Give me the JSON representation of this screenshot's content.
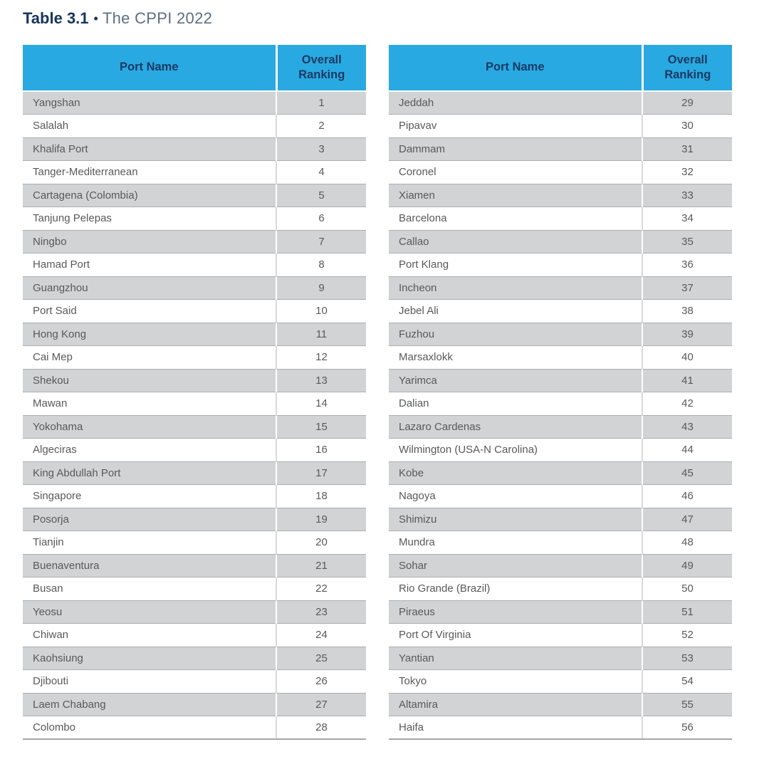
{
  "title": {
    "label": "Table 3.1",
    "bullet": "•",
    "text": "The CPPI 2022"
  },
  "columns": {
    "port": "Port Name",
    "ranking": "Overall Ranking"
  },
  "tables": [
    {
      "name": "ranks-1-28",
      "rows": [
        {
          "port": "Yangshan",
          "rank": "1"
        },
        {
          "port": "Salalah",
          "rank": "2"
        },
        {
          "port": "Khalifa Port",
          "rank": "3"
        },
        {
          "port": "Tanger-Mediterranean",
          "rank": "4"
        },
        {
          "port": "Cartagena (Colombia)",
          "rank": "5"
        },
        {
          "port": "Tanjung Pelepas",
          "rank": "6"
        },
        {
          "port": "Ningbo",
          "rank": "7"
        },
        {
          "port": "Hamad Port",
          "rank": "8"
        },
        {
          "port": "Guangzhou",
          "rank": "9"
        },
        {
          "port": "Port Said",
          "rank": "10"
        },
        {
          "port": "Hong Kong",
          "rank": "11"
        },
        {
          "port": "Cai Mep",
          "rank": "12"
        },
        {
          "port": "Shekou",
          "rank": "13"
        },
        {
          "port": "Mawan",
          "rank": "14"
        },
        {
          "port": "Yokohama",
          "rank": "15"
        },
        {
          "port": "Algeciras",
          "rank": "16"
        },
        {
          "port": "King Abdullah Port",
          "rank": "17"
        },
        {
          "port": "Singapore",
          "rank": "18"
        },
        {
          "port": "Posorja",
          "rank": "19"
        },
        {
          "port": "Tianjin",
          "rank": "20"
        },
        {
          "port": "Buenaventura",
          "rank": "21"
        },
        {
          "port": "Busan",
          "rank": "22"
        },
        {
          "port": "Yeosu",
          "rank": "23"
        },
        {
          "port": "Chiwan",
          "rank": "24"
        },
        {
          "port": "Kaohsiung",
          "rank": "25"
        },
        {
          "port": "Djibouti",
          "rank": "26"
        },
        {
          "port": "Laem Chabang",
          "rank": "27"
        },
        {
          "port": "Colombo",
          "rank": "28"
        }
      ]
    },
    {
      "name": "ranks-29-56",
      "rows": [
        {
          "port": "Jeddah",
          "rank": "29"
        },
        {
          "port": "Pipavav",
          "rank": "30"
        },
        {
          "port": "Dammam",
          "rank": "31"
        },
        {
          "port": "Coronel",
          "rank": "32"
        },
        {
          "port": "Xiamen",
          "rank": "33"
        },
        {
          "port": "Barcelona",
          "rank": "34"
        },
        {
          "port": "Callao",
          "rank": "35"
        },
        {
          "port": "Port Klang",
          "rank": "36"
        },
        {
          "port": "Incheon",
          "rank": "37"
        },
        {
          "port": "Jebel Ali",
          "rank": "38"
        },
        {
          "port": "Fuzhou",
          "rank": "39"
        },
        {
          "port": "Marsaxlokk",
          "rank": "40"
        },
        {
          "port": "Yarimca",
          "rank": "41"
        },
        {
          "port": "Dalian",
          "rank": "42"
        },
        {
          "port": "Lazaro Cardenas",
          "rank": "43"
        },
        {
          "port": "Wilmington (USA-N Carolina)",
          "rank": "44"
        },
        {
          "port": "Kobe",
          "rank": "45"
        },
        {
          "port": "Nagoya",
          "rank": "46"
        },
        {
          "port": "Shimizu",
          "rank": "47"
        },
        {
          "port": "Mundra",
          "rank": "48"
        },
        {
          "port": "Sohar",
          "rank": "49"
        },
        {
          "port": "Rio Grande (Brazil)",
          "rank": "50"
        },
        {
          "port": "Piraeus",
          "rank": "51"
        },
        {
          "port": "Port Of Virginia",
          "rank": "52"
        },
        {
          "port": "Yantian",
          "rank": "53"
        },
        {
          "port": "Tokyo",
          "rank": "54"
        },
        {
          "port": "Altamira",
          "rank": "55"
        },
        {
          "port": "Haifa",
          "rank": "56"
        }
      ]
    }
  ],
  "colors": {
    "header_bg": "#29a9e1",
    "header_text": "#1a3a64",
    "row_alt_bg": "#d1d3d4",
    "row_text": "#58595b",
    "title_navy": "#16355f",
    "title_sub": "#5e6e80"
  }
}
